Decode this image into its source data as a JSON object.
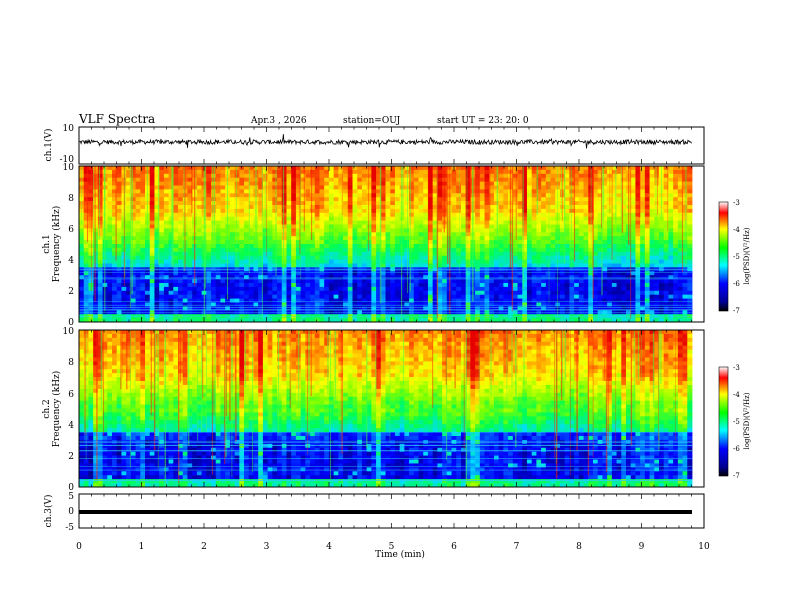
{
  "header": {
    "title": "VLF Spectra",
    "date": "Apr.3  , 2026",
    "station": "station=OUJ",
    "start": "start  UT  =   23: 20: 0"
  },
  "chart_data": [
    {
      "type": "line",
      "panel": "ch1-waveform",
      "ylabel": "ch.1(V)",
      "ylim": [
        -10,
        10
      ],
      "yticks": [
        "10",
        "-10"
      ],
      "xlim": [
        0,
        10
      ],
      "description_values": {
        "baseline": 0,
        "noise_amplitude": 1.2,
        "spike_amplitude": 3.5
      }
    },
    {
      "type": "heatmap",
      "panel": "ch1-spectrogram",
      "ylabel_line1": "ch.1",
      "ylabel_line2": "Frequency (kHz)",
      "ylim": [
        0,
        10
      ],
      "yticks": [
        "0",
        "2",
        "4",
        "6",
        "8",
        "10"
      ],
      "xlim": [
        0,
        9.8
      ],
      "colorbar": {
        "label": "log(PSD)(V²/Hz)",
        "range": [
          -7,
          -3
        ],
        "ticks": [
          "-3",
          "-4",
          "-5",
          "-6",
          "-7"
        ]
      }
    },
    {
      "type": "heatmap",
      "panel": "ch2-spectrogram",
      "ylabel_line1": "ch.2",
      "ylabel_line2": "Frequency (kHz)",
      "ylim": [
        0,
        10
      ],
      "yticks": [
        "0",
        "2",
        "4",
        "6",
        "8",
        "10"
      ],
      "xlim": [
        0,
        9.8
      ],
      "colorbar": {
        "label": "log(PSD)(V²/Hz)",
        "range": [
          -7,
          -3
        ],
        "ticks": [
          "-3",
          "-4",
          "-5",
          "-6",
          "-7"
        ]
      }
    },
    {
      "type": "line",
      "panel": "ch3-waveform",
      "ylabel": "ch.3(V)",
      "ylim": [
        -5,
        5
      ],
      "yticks": [
        "5",
        "0",
        "-5"
      ],
      "xlim": [
        0,
        10
      ],
      "values": {
        "constant_level": -0.5
      }
    }
  ],
  "x_axis": {
    "label": "Time (min)",
    "ticks": [
      "0",
      "1",
      "2",
      "3",
      "4",
      "5",
      "6",
      "7",
      "8",
      "9",
      "10"
    ]
  },
  "colors": {
    "scale": [
      "#000080",
      "#0000ff",
      "#00ffff",
      "#00ff00",
      "#ffff00",
      "#ff0000",
      "#800000"
    ],
    "trace": "#000000"
  }
}
